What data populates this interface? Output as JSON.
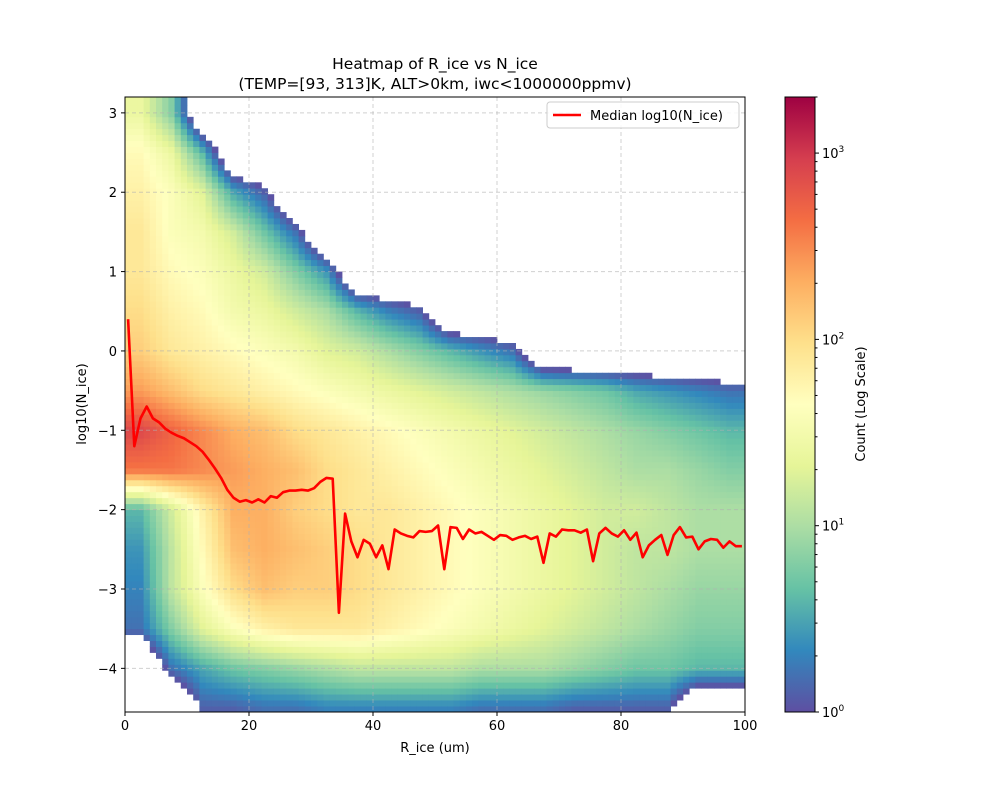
{
  "chart_data": {
    "type": "heatmap",
    "title": "Heatmap of R_ice vs N_ice",
    "subtitle": "(TEMP=[93, 313]K, ALT>0km, iwc<1000000ppmv)",
    "xlabel": "R_ice (um)",
    "ylabel": "log10(N_ice)",
    "xlim": [
      0,
      100
    ],
    "ylim": [
      -4.55,
      3.2
    ],
    "xticks": [
      0,
      20,
      40,
      60,
      80,
      100
    ],
    "yticks": [
      -4,
      -3,
      -2,
      -1,
      0,
      1,
      2,
      3
    ],
    "grid": true,
    "colormap": "Spectral_r",
    "colormap_stops": [
      "#5e4fa2",
      "#3288bd",
      "#66c2a5",
      "#abdda4",
      "#e6f598",
      "#ffffbf",
      "#fee08b",
      "#fdae61",
      "#f46d43",
      "#d53e4f",
      "#9e0142"
    ],
    "colorbar": {
      "label": "Count (Log Scale)",
      "scale": "log",
      "range": [
        1,
        2000
      ],
      "ticks": [
        {
          "value": 1,
          "base": "10",
          "exp": "0"
        },
        {
          "value": 10,
          "base": "10",
          "exp": "1"
        },
        {
          "value": 100,
          "base": "10",
          "exp": "2"
        },
        {
          "value": 1000,
          "base": "10",
          "exp": "3"
        }
      ]
    },
    "heatmap_grid": {
      "value_description": "log10(count), coarse approximation; -1 = empty",
      "x_centers": [
        2.5,
        7.5,
        12.5,
        17.5,
        22.5,
        27.5,
        32.5,
        37.5,
        42.5,
        47.5,
        52.5,
        57.5,
        62.5,
        67.5,
        72.5,
        77.5,
        82.5,
        87.5,
        92.5,
        97.5
      ],
      "y_centers": [
        3.0,
        2.5,
        2.0,
        1.5,
        1.0,
        0.5,
        0,
        -0.5,
        -1,
        -1.5,
        -2,
        -2.5,
        -3,
        -3.5,
        -4,
        -4.5
      ],
      "values": [
        [
          1.4,
          0.8,
          -1,
          -1,
          -1,
          -1,
          -1,
          -1,
          -1,
          -1,
          -1,
          -1,
          -1,
          -1,
          -1,
          -1,
          -1,
          -1,
          -1,
          -1
        ],
        [
          1.7,
          1.4,
          0.6,
          -1,
          -1,
          -1,
          -1,
          -1,
          -1,
          -1,
          -1,
          -1,
          -1,
          -1,
          -1,
          -1,
          -1,
          -1,
          -1,
          -1
        ],
        [
          1.8,
          1.6,
          1.3,
          0.5,
          0.1,
          -1,
          -1,
          -1,
          -1,
          -1,
          -1,
          -1,
          -1,
          -1,
          -1,
          -1,
          -1,
          -1,
          -1,
          -1
        ],
        [
          1.9,
          1.6,
          1.5,
          1.2,
          0.7,
          0.2,
          -1,
          -1,
          -1,
          -1,
          -1,
          -1,
          -1,
          -1,
          -1,
          -1,
          -1,
          -1,
          -1,
          -1
        ],
        [
          1.9,
          1.7,
          1.6,
          1.4,
          1.2,
          0.8,
          0.4,
          -1,
          -1,
          -1,
          -1,
          -1,
          -1,
          -1,
          -1,
          -1,
          -1,
          -1,
          -1,
          -1
        ],
        [
          2.0,
          1.8,
          1.7,
          1.5,
          1.4,
          1.2,
          1.0,
          0.6,
          0.3,
          0.1,
          -1,
          -1,
          -1,
          -1,
          -1,
          -1,
          -1,
          -1,
          -1,
          -1
        ],
        [
          2.1,
          1.9,
          1.8,
          1.7,
          1.6,
          1.5,
          1.3,
          1.2,
          1.0,
          0.8,
          0.6,
          0.4,
          0.2,
          -1,
          -1,
          -1,
          -1,
          -1,
          -1,
          -1
        ],
        [
          2.4,
          2.2,
          2.0,
          1.9,
          1.8,
          1.7,
          1.6,
          1.5,
          1.4,
          1.3,
          1.2,
          1.1,
          1.0,
          0.9,
          0.8,
          0.7,
          0.5,
          0.4,
          0.3,
          0.2
        ],
        [
          2.9,
          2.7,
          2.5,
          2.3,
          2.2,
          2.0,
          1.9,
          1.8,
          1.7,
          1.6,
          1.5,
          1.4,
          1.3,
          1.2,
          1.1,
          1.0,
          0.9,
          0.8,
          0.7,
          0.6
        ],
        [
          2.6,
          2.6,
          2.5,
          2.4,
          2.3,
          2.2,
          2.0,
          1.9,
          1.8,
          1.7,
          1.6,
          1.5,
          1.4,
          1.3,
          1.2,
          1.1,
          1.0,
          1.0,
          0.9,
          0.8
        ],
        [
          0.6,
          1.2,
          1.8,
          2.3,
          2.3,
          2.1,
          2.0,
          1.9,
          1.9,
          1.8,
          1.7,
          1.6,
          1.5,
          1.4,
          1.3,
          1.2,
          1.2,
          1.1,
          1.0,
          1.0
        ],
        [
          0.4,
          1.1,
          1.7,
          2.2,
          2.3,
          2.2,
          2.1,
          2.0,
          1.9,
          1.8,
          1.7,
          1.6,
          1.5,
          1.4,
          1.3,
          1.2,
          1.1,
          1.1,
          1.0,
          1.0
        ],
        [
          0.3,
          1.1,
          1.6,
          2.0,
          2.2,
          2.1,
          2.1,
          2.0,
          1.9,
          1.8,
          1.7,
          1.6,
          1.5,
          1.4,
          1.3,
          1.2,
          1.1,
          1.0,
          0.9,
          0.9
        ],
        [
          0.2,
          0.8,
          1.3,
          1.6,
          1.8,
          1.9,
          1.9,
          1.9,
          1.8,
          1.7,
          1.6,
          1.5,
          1.4,
          1.3,
          1.2,
          1.1,
          1.0,
          0.9,
          0.8,
          0.8
        ],
        [
          -1,
          0.2,
          0.5,
          0.7,
          0.8,
          0.9,
          1.0,
          1.1,
          1.1,
          1.1,
          1.1,
          1.0,
          1.0,
          1.0,
          0.9,
          0.8,
          0.7,
          0.7,
          0.6,
          0.6
        ],
        [
          -1,
          -1,
          0.1,
          0.1,
          0.2,
          0.2,
          0.3,
          0.3,
          0.3,
          0.3,
          0.3,
          0.2,
          0.2,
          0.2,
          0.1,
          0.1,
          0.1,
          0.1,
          -1,
          -1
        ]
      ]
    },
    "series": [
      {
        "name": "Median log10(N_ice)",
        "color": "#ff0000",
        "x": [
          0.5,
          1.5,
          2.5,
          3.5,
          4.5,
          5.5,
          6.5,
          7.5,
          8.5,
          9.5,
          10.5,
          11.5,
          12.5,
          13.5,
          14.5,
          15.5,
          16.5,
          17.5,
          18.5,
          19.5,
          20.5,
          21.5,
          22.5,
          23.5,
          24.5,
          25.5,
          26.5,
          27.5,
          28.5,
          29.5,
          30.5,
          31.5,
          32.5,
          33.5,
          34.5,
          35.5,
          36.5,
          37.5,
          38.5,
          39.5,
          40.5,
          41.5,
          42.5,
          43.5,
          44.5,
          45.5,
          46.5,
          47.5,
          48.5,
          49.5,
          50.5,
          51.5,
          52.5,
          53.5,
          54.5,
          55.5,
          56.5,
          57.5,
          58.5,
          59.5,
          60.5,
          61.5,
          62.5,
          63.5,
          64.5,
          65.5,
          66.5,
          67.5,
          68.5,
          69.5,
          70.5,
          71.5,
          72.5,
          73.5,
          74.5,
          75.5,
          76.5,
          77.5,
          78.5,
          79.5,
          80.5,
          81.5,
          82.5,
          83.5,
          84.5,
          85.5,
          86.5,
          87.5,
          88.5,
          89.5,
          90.5,
          91.5,
          92.5,
          93.5,
          94.5,
          95.5,
          96.5,
          97.5,
          98.5,
          99.5
        ],
        "y": [
          0.4,
          -1.2,
          -0.85,
          -0.7,
          -0.85,
          -0.9,
          -0.98,
          -1.03,
          -1.07,
          -1.1,
          -1.15,
          -1.2,
          -1.27,
          -1.37,
          -1.48,
          -1.6,
          -1.75,
          -1.85,
          -1.9,
          -1.88,
          -1.91,
          -1.87,
          -1.91,
          -1.83,
          -1.85,
          -1.78,
          -1.76,
          -1.76,
          -1.75,
          -1.76,
          -1.73,
          -1.65,
          -1.6,
          -1.61,
          -3.3,
          -2.05,
          -2.4,
          -2.6,
          -2.38,
          -2.43,
          -2.6,
          -2.45,
          -2.75,
          -2.25,
          -2.3,
          -2.33,
          -2.35,
          -2.27,
          -2.28,
          -2.27,
          -2.2,
          -2.75,
          -2.22,
          -2.23,
          -2.37,
          -2.25,
          -2.3,
          -2.28,
          -2.33,
          -2.38,
          -2.32,
          -2.33,
          -2.38,
          -2.35,
          -2.33,
          -2.37,
          -2.34,
          -2.67,
          -2.3,
          -2.34,
          -2.25,
          -2.26,
          -2.26,
          -2.29,
          -2.25,
          -2.65,
          -2.3,
          -2.23,
          -2.3,
          -2.34,
          -2.26,
          -2.38,
          -2.29,
          -2.6,
          -2.45,
          -2.38,
          -2.32,
          -2.57,
          -2.32,
          -2.22,
          -2.35,
          -2.34,
          -2.5,
          -2.4,
          -2.37,
          -2.38,
          -2.48,
          -2.4,
          -2.46,
          -2.46
        ]
      }
    ],
    "legend": {
      "placement": "upper right",
      "entries": [
        "Median log10(N_ice)"
      ]
    }
  }
}
